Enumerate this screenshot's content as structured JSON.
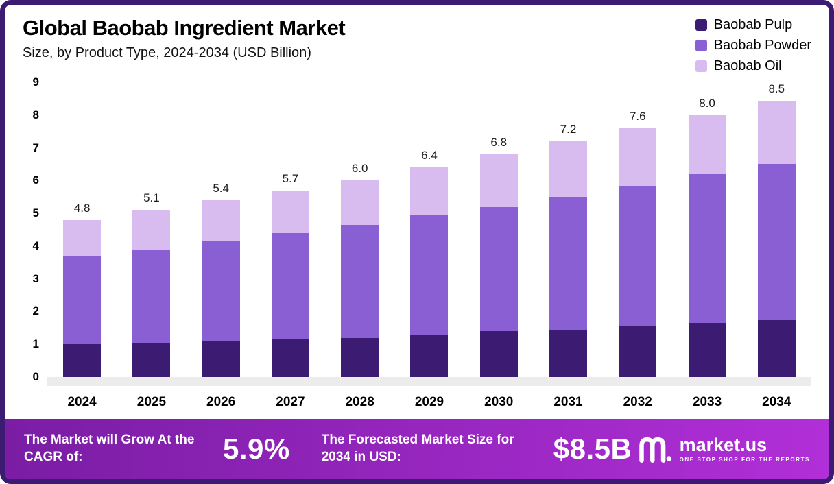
{
  "chart_data": {
    "type": "bar",
    "stacked": true,
    "title": "Global Baobab Ingredient Market",
    "subtitle": "Size, by Product Type, 2024-2034 (USD Billion)",
    "categories": [
      "2024",
      "2025",
      "2026",
      "2027",
      "2028",
      "2029",
      "2030",
      "2031",
      "2032",
      "2033",
      "2034"
    ],
    "series": [
      {
        "name": "Baobab Pulp",
        "color": "#3b1c72",
        "values": [
          1.0,
          1.05,
          1.1,
          1.15,
          1.2,
          1.3,
          1.4,
          1.45,
          1.55,
          1.65,
          1.75
        ]
      },
      {
        "name": "Baobab Powder",
        "color": "#8a5fd3",
        "values": [
          2.7,
          2.85,
          3.05,
          3.25,
          3.45,
          3.65,
          3.8,
          4.05,
          4.3,
          4.55,
          4.8
        ]
      },
      {
        "name": "Baobab Oil",
        "color": "#d8bcf0",
        "values": [
          1.1,
          1.2,
          1.25,
          1.3,
          1.35,
          1.45,
          1.6,
          1.7,
          1.75,
          1.8,
          1.95
        ]
      }
    ],
    "totals": [
      4.8,
      5.1,
      5.4,
      5.7,
      6.0,
      6.4,
      6.8,
      7.2,
      7.6,
      8.0,
      8.5
    ],
    "ylim": [
      0,
      9
    ],
    "yticks": [
      0,
      1,
      2,
      3,
      4,
      5,
      6,
      7,
      8,
      9
    ],
    "legend_position": "top-right",
    "grid": false
  },
  "banner": {
    "cagr_label": "The Market will Grow At the CAGR of:",
    "cagr_value": "5.9%",
    "forecast_label": "The Forecasted Market Size for 2034 in USD:",
    "forecast_value": "$8.5B",
    "logo_text": "market.us",
    "logo_tagline": "ONE STOP SHOP FOR THE REPORTS"
  }
}
